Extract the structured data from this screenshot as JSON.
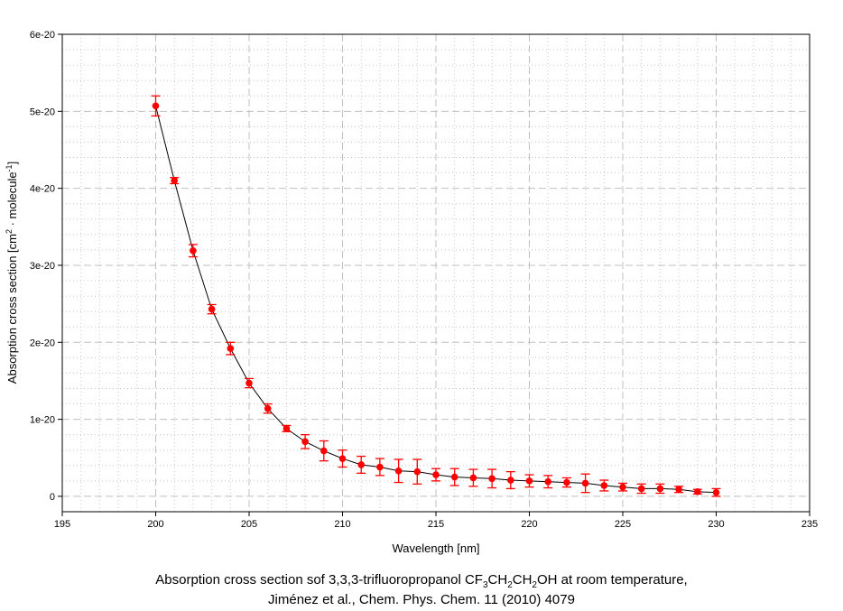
{
  "chart_data": {
    "type": "scatter",
    "title": "Absorption cross section sof 3,3,3-trifluoropropanol CF3CH2CH2OH at room temperature,",
    "title_parts": [
      {
        "text": "Absorption cross section sof 3,3,3-trifluoropropanol CF"
      },
      {
        "text": "3",
        "sub": true
      },
      {
        "text": "CH"
      },
      {
        "text": "2",
        "sub": true
      },
      {
        "text": "CH"
      },
      {
        "text": "2",
        "sub": true
      },
      {
        "text": "OH at room temperature,"
      }
    ],
    "subtitle": "Jiménez et al., Chem. Phys. Chem. 11 (2010) 4079",
    "xlabel": "Wavelength [nm]",
    "ylabel_parts": [
      {
        "text": "Absorption cross section [cm"
      },
      {
        "text": "2",
        "sup": true
      },
      {
        "text": " · molecule"
      },
      {
        "text": "-1",
        "sup": true
      },
      {
        "text": "]"
      }
    ],
    "xlim": [
      195,
      235
    ],
    "ylim": [
      -2e-21,
      6e-20
    ],
    "x_ticks": [
      "195",
      "200",
      "205",
      "210",
      "215",
      "220",
      "225",
      "230",
      "235"
    ],
    "y_ticks": [
      "0",
      "1e-20",
      "2e-20",
      "3e-20",
      "4e-20",
      "5e-20",
      "6e-20"
    ],
    "grid": true,
    "legend": "none",
    "marker_color": "#ff0000",
    "line_color": "#000000",
    "x": [
      200,
      201,
      202,
      203,
      204,
      205,
      206,
      207,
      208,
      209,
      210,
      211,
      212,
      213,
      214,
      215,
      216,
      217,
      218,
      219,
      220,
      221,
      222,
      223,
      224,
      225,
      226,
      227,
      228,
      229,
      230
    ],
    "y": [
      5.07e-20,
      4.1e-20,
      3.19e-20,
      2.43e-20,
      1.92e-20,
      1.47e-20,
      1.14e-20,
      8.8e-21,
      7.1e-21,
      5.9e-21,
      4.9e-21,
      4.1e-21,
      3.8e-21,
      3.3e-21,
      3.2e-21,
      2.8e-21,
      2.5e-21,
      2.4e-21,
      2.3e-21,
      2.1e-21,
      2e-21,
      1.9e-21,
      1.8e-21,
      1.7e-21,
      1.4e-21,
      1.2e-21,
      1e-21,
      1e-21,
      9e-22,
      6e-22,
      5e-22
    ],
    "y_error": [
      1.3e-21,
      4e-22,
      8e-22,
      6e-22,
      8e-22,
      6e-22,
      6e-22,
      4e-22,
      9e-22,
      1.3e-21,
      1.1e-21,
      1.1e-21,
      1.1e-21,
      1.5e-21,
      1.6e-21,
      8e-22,
      1.1e-21,
      1.1e-21,
      1.2e-21,
      1.1e-21,
      8e-22,
      8e-22,
      6e-22,
      1.2e-21,
      7e-22,
      5e-22,
      6e-22,
      6e-22,
      4e-22,
      3e-22,
      5e-22
    ]
  }
}
